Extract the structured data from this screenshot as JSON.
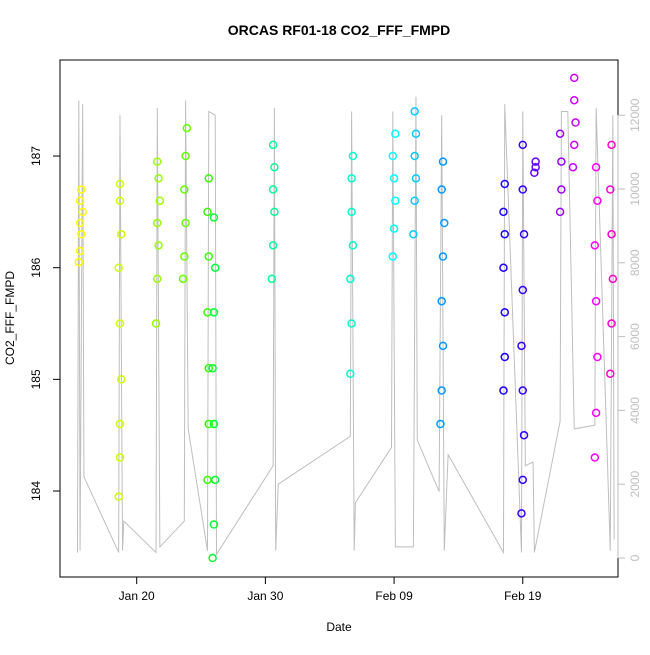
{
  "chart_data": {
    "type": "scatter",
    "title": "ORCAS RF01-18 CO2_FFF_FMPD",
    "xlabel": "Date",
    "ylabel": "CO2_FFF_FMPD",
    "xlim": [
      14.04,
      57.4
    ],
    "xticks": [
      {
        "value": 20,
        "label": "Jan 20"
      },
      {
        "value": 30,
        "label": "Jan 30"
      },
      {
        "value": 40,
        "label": "Feb 09"
      },
      {
        "value": 50,
        "label": "Feb 19"
      }
    ],
    "ylim": [
      183.23,
      187.86
    ],
    "yticks": [
      184,
      185,
      186,
      187
    ],
    "y2lim": [
      -515,
      13496
    ],
    "y2ticks": [
      0,
      2000,
      4000,
      6000,
      8000,
      10000,
      12000
    ],
    "y2color": "#bebebe",
    "series": [
      {
        "type": "line",
        "axis": "y2",
        "color": "#bebebe",
        "x": [
          15.4,
          15.5,
          15.6,
          15.8,
          15.9,
          18.6,
          18.7,
          18.9,
          19.0,
          21.5,
          21.6,
          21.8,
          23.7,
          23.8,
          24.0,
          25.5,
          25.6,
          26.1,
          26.2,
          30.6,
          30.7,
          30.8,
          31.0,
          36.6,
          36.7,
          36.9,
          37.0,
          39.8,
          39.9,
          40.1,
          41.5,
          41.7,
          41.8,
          43.5,
          43.7,
          43.9,
          44.2,
          48.5,
          48.6,
          49.9,
          50.0,
          50.2,
          50.8,
          50.9,
          52.9,
          53.0,
          53.5,
          54.0,
          55.6,
          55.7,
          56.8,
          57.0,
          57.1
        ],
        "values": [
          150,
          12400,
          200,
          12300,
          2200,
          150,
          12000,
          200,
          1000,
          150,
          12200,
          300,
          1000,
          12400,
          3500,
          200,
          12100,
          12000,
          100,
          2500,
          12200,
          200,
          2000,
          3300,
          12100,
          200,
          1500,
          3000,
          12100,
          300,
          300,
          12500,
          3200,
          1800,
          12000,
          200,
          2800,
          150,
          12300,
          150,
          12100,
          2500,
          2600,
          150,
          3700,
          12100,
          12100,
          3500,
          3600,
          12200,
          200,
          12000,
          500
        ]
      },
      {
        "color": "#ffff00",
        "x": [
          15.5,
          15.6,
          15.7,
          15.6,
          15.8,
          15.6,
          15.7
        ],
        "values": [
          186.05,
          186.15,
          186.3,
          186.4,
          186.5,
          186.6,
          186.7
        ]
      },
      {
        "color": "#ccff00",
        "x": [
          18.6,
          18.7,
          18.7,
          18.8,
          18.7,
          18.6,
          18.8,
          18.7,
          18.7
        ],
        "values": [
          183.95,
          184.3,
          184.6,
          185.0,
          185.5,
          186.0,
          186.3,
          186.6,
          186.75
        ]
      },
      {
        "color": "#99ff00",
        "x": [
          21.5,
          21.6,
          21.7,
          21.6,
          21.8,
          21.7,
          21.6
        ],
        "values": [
          185.5,
          185.9,
          186.2,
          186.4,
          186.6,
          186.8,
          186.95
        ]
      },
      {
        "color": "#66ff00",
        "x": [
          23.6,
          23.7,
          23.8,
          23.7,
          23.8,
          23.9
        ],
        "values": [
          185.9,
          186.1,
          186.4,
          186.7,
          187.0,
          187.25
        ]
      },
      {
        "color": "#33ff00",
        "x": [
          25.5,
          25.6,
          25.6,
          25.5,
          25.6,
          25.5,
          25.6
        ],
        "values": [
          184.1,
          184.6,
          185.1,
          185.6,
          186.1,
          186.5,
          186.8
        ]
      },
      {
        "color": "#00ff33",
        "x": [
          25.9,
          26.0,
          26.1,
          26.0,
          25.9,
          26.0,
          26.1,
          26.0
        ],
        "values": [
          183.4,
          183.7,
          184.1,
          184.6,
          185.1,
          185.6,
          186.0,
          186.45
        ]
      },
      {
        "color": "#00ff99",
        "x": [
          30.5,
          30.6,
          30.7,
          30.6,
          30.7,
          30.6
        ],
        "values": [
          185.9,
          186.2,
          186.5,
          186.7,
          186.9,
          187.1
        ]
      },
      {
        "color": "#00ffcc",
        "x": [
          36.6,
          36.7,
          36.6,
          36.8,
          36.7,
          36.7,
          36.8
        ],
        "values": [
          185.05,
          185.5,
          185.9,
          186.2,
          186.5,
          186.8,
          187.0
        ]
      },
      {
        "color": "#00ffff",
        "x": [
          39.9,
          40.0,
          40.1,
          40.0,
          39.9,
          40.1
        ],
        "values": [
          186.1,
          186.35,
          186.6,
          186.8,
          187.0,
          187.2
        ]
      },
      {
        "color": "#00ccff",
        "x": [
          41.5,
          41.6,
          41.7,
          41.6,
          41.7,
          41.6
        ],
        "values": [
          186.3,
          186.6,
          186.8,
          187.0,
          187.2,
          187.4
        ]
      },
      {
        "color": "#0099ff",
        "x": [
          43.6,
          43.7,
          43.8,
          43.7,
          43.8,
          43.9,
          43.7,
          43.8
        ],
        "values": [
          184.6,
          184.9,
          185.3,
          185.7,
          186.1,
          186.4,
          186.7,
          186.95
        ]
      },
      {
        "color": "#1a00ff",
        "x": [
          48.5,
          48.6,
          48.6,
          48.5,
          48.6,
          48.5,
          48.6
        ],
        "values": [
          184.9,
          185.2,
          185.6,
          186.0,
          186.3,
          186.5,
          186.75
        ]
      },
      {
        "color": "#3300ff",
        "x": [
          49.9,
          50.0,
          50.1,
          50.0,
          49.9,
          50.0,
          50.1,
          50.0,
          50.0
        ],
        "values": [
          183.8,
          184.1,
          184.5,
          184.9,
          185.3,
          185.8,
          186.3,
          186.7,
          187.1
        ]
      },
      {
        "color": "#6600ff",
        "x": [
          50.9,
          51.0,
          51.0
        ],
        "values": [
          186.85,
          186.9,
          186.95
        ]
      },
      {
        "color": "#9900ff",
        "x": [
          52.9,
          53.0,
          53.0,
          52.9
        ],
        "values": [
          186.5,
          186.7,
          186.95,
          187.2
        ]
      },
      {
        "color": "#cc00ff",
        "x": [
          53.9,
          54.0,
          54.1,
          54.0,
          54.0
        ],
        "values": [
          186.9,
          187.1,
          187.3,
          187.5,
          187.7
        ]
      },
      {
        "color": "#ff00ff",
        "x": [
          55.6,
          55.7,
          55.8,
          55.7,
          55.6,
          55.8,
          55.7
        ],
        "values": [
          184.3,
          184.7,
          185.2,
          185.7,
          186.2,
          186.6,
          186.9
        ]
      },
      {
        "color": "#ff00cc",
        "x": [
          56.8,
          56.9,
          57.0,
          56.9,
          56.8,
          56.9
        ],
        "values": [
          185.05,
          185.5,
          185.9,
          186.3,
          186.7,
          187.1
        ]
      }
    ]
  }
}
